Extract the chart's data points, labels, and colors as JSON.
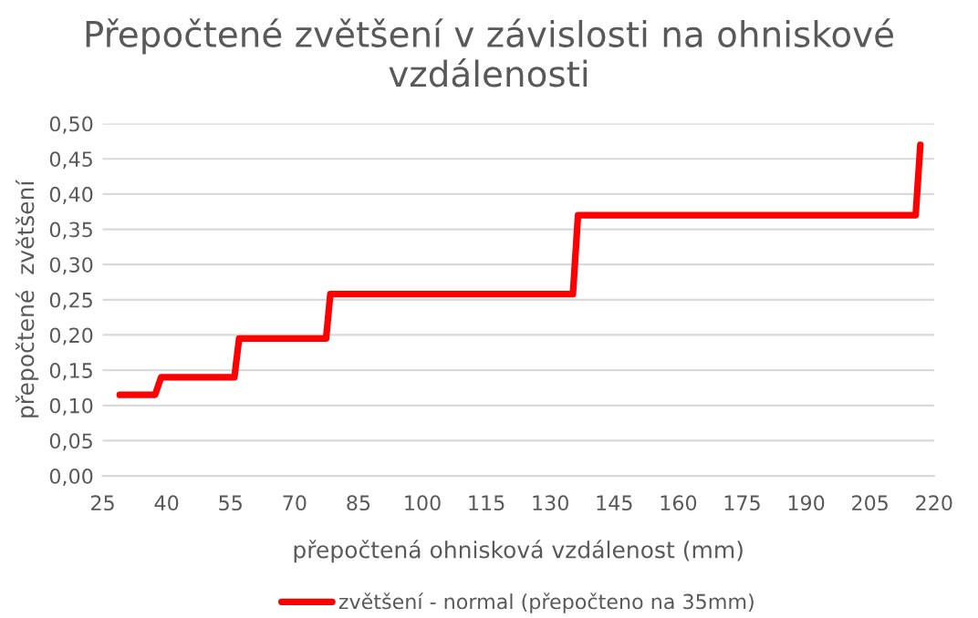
{
  "chart_data": {
    "type": "line",
    "title": "Přepočtené zvětšení v závislosti na ohniskové vzdálenosti",
    "xlabel": "přepočtená ohnisková vzdálenost (mm)",
    "ylabel": "přepočtené  zvětšení",
    "series": [
      {
        "name": "zvětšení - normal (přepočteno na 35mm)",
        "color": "#ff0000",
        "x": [
          29,
          37.3,
          38.7,
          55.9,
          57,
          77.4,
          78.4,
          135.3,
          136.5,
          215.7,
          216.8
        ],
        "values": [
          0.115,
          0.115,
          0.14,
          0.14,
          0.195,
          0.195,
          0.258,
          0.258,
          0.37,
          0.37,
          0.47
        ]
      }
    ],
    "xlim": [
      25,
      220
    ],
    "xticks": [
      25,
      40,
      55,
      70,
      85,
      100,
      115,
      130,
      145,
      160,
      175,
      190,
      205,
      220
    ],
    "ylim": [
      0,
      0.5
    ],
    "yticks": [
      {
        "value": 0,
        "label": "0,00"
      },
      {
        "value": 0.05,
        "label": "0,05"
      },
      {
        "value": 0.1,
        "label": "0,10"
      },
      {
        "value": 0.15,
        "label": "0,15"
      },
      {
        "value": 0.2,
        "label": "0,20"
      },
      {
        "value": 0.25,
        "label": "0,25"
      },
      {
        "value": 0.3,
        "label": "0,30"
      },
      {
        "value": 0.35,
        "label": "0,35"
      },
      {
        "value": 0.4,
        "label": "0,40"
      },
      {
        "value": 0.45,
        "label": "0,45"
      },
      {
        "value": 0.5,
        "label": "0,50"
      }
    ],
    "grid": "y",
    "legend": "bottom",
    "line_style": "solid",
    "marker": "none"
  }
}
